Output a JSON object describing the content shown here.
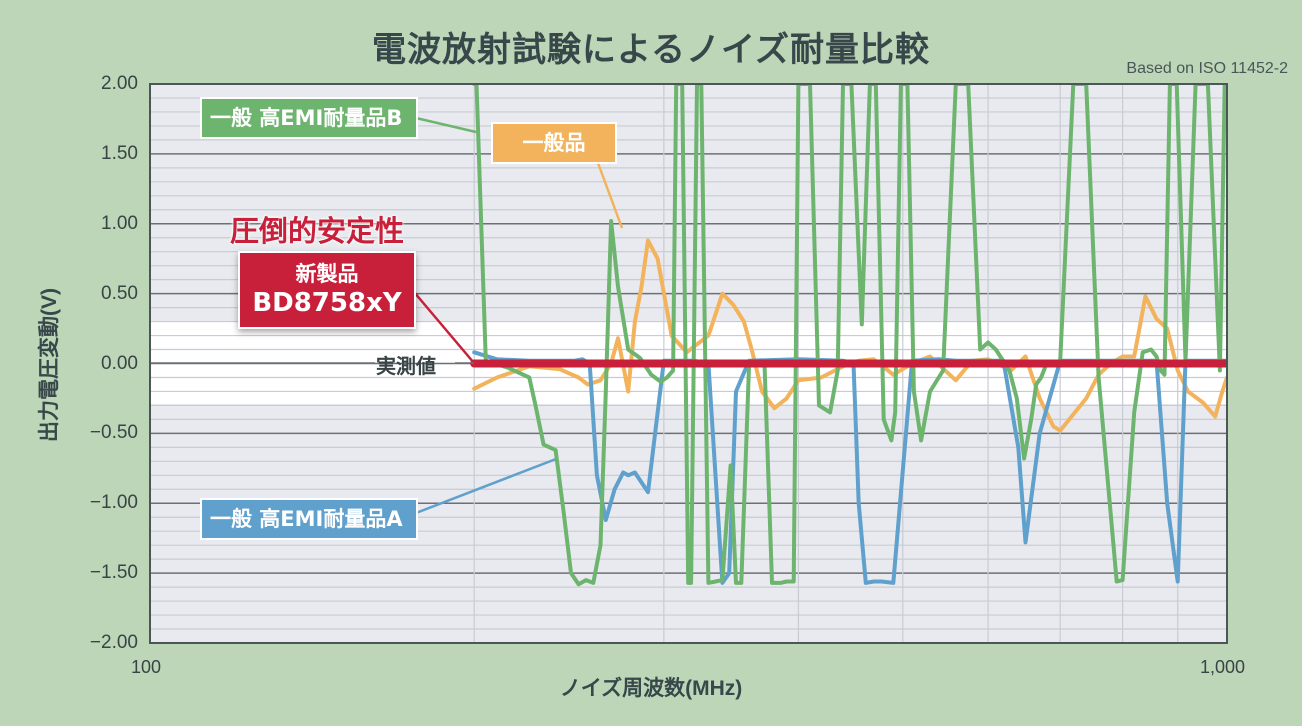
{
  "header": {
    "title": "電波放射試験によるノイズ耐量比較",
    "subtitle": "Based on ISO 11452-2"
  },
  "annotations": {
    "headline": "圧倒的安定性",
    "new_product_line1": "新製品",
    "new_product_line2": "BD8758xY",
    "measured_value": "実測値",
    "label_b": "一般 高EMI耐量品B",
    "label_general": "一般品",
    "label_a": "一般 高EMI耐量品A"
  },
  "colors": {
    "background": "#bdd6b8",
    "plot_background": "#e8eaef",
    "highlight_band": "#ffffff",
    "new_product": "#c8203a",
    "emi_b": "#6db46e",
    "general": "#f2b35c",
    "emi_a": "#5fa0cc",
    "major_grid": "#6b7074",
    "minor_grid": "#c8ccd2"
  },
  "chart_data": {
    "type": "line",
    "title": "電波放射試験によるノイズ耐量比較",
    "subtitle": "Based on ISO 11452-2",
    "xlabel": "ノイズ周波数(MHz)",
    "ylabel": "出力電圧変動(V)",
    "xscale": "log",
    "xlim": [
      100,
      1000
    ],
    "ylim": [
      -2.0,
      2.0
    ],
    "x_ticks": [
      "100",
      "1,000"
    ],
    "y_ticks": [
      "2.00",
      "1.50",
      "1.00",
      "0.50",
      "0.00",
      "−0.50",
      "−1.00",
      "−1.50",
      "−2.00"
    ],
    "grid": true,
    "legend_position": "inline callouts",
    "series": [
      {
        "name": "一般 高EMI耐量品B",
        "color": "#6db46e",
        "x": [
          200,
          201,
          205,
          215,
          225,
          228,
          232,
          238,
          242,
          246,
          250,
          254,
          258,
          262,
          265,
          268,
          272,
          278,
          285,
          292,
          298,
          302,
          306,
          308,
          312,
          316,
          318,
          322,
          325,
          330,
          335,
          340,
          346,
          350,
          354,
          360,
          372,
          378,
          385,
          390,
          396,
          400,
          410,
          418,
          428,
          435,
          440,
          448,
          458,
          466,
          472,
          480,
          488,
          492,
          498,
          505,
          512,
          520,
          530,
          545,
          560,
          575,
          590,
          600,
          610,
          628,
          638,
          648,
          658,
          665,
          672,
          680,
          700,
          720,
          740,
          760,
          790,
          800,
          820,
          835,
          850,
          860,
          868,
          875,
          885,
          898,
          915,
          935,
          960,
          985,
          995,
          1000
        ],
        "y": [
          2.0,
          2.0,
          0.02,
          -0.03,
          -0.1,
          -0.3,
          -0.58,
          -0.62,
          -1.05,
          -1.5,
          -1.58,
          -1.55,
          -1.57,
          -1.3,
          -0.2,
          1.02,
          0.55,
          0.1,
          0.04,
          -0.08,
          -0.13,
          -0.1,
          -0.05,
          2.0,
          2.0,
          -1.57,
          -1.57,
          2.0,
          2.0,
          -1.57,
          -1.56,
          -1.55,
          -0.73,
          -1.57,
          -1.57,
          0.0,
          0.0,
          -1.57,
          -1.57,
          -1.56,
          -1.56,
          2.0,
          2.0,
          -0.3,
          -0.35,
          -0.05,
          2.0,
          2.0,
          0.28,
          2.0,
          2.0,
          -0.4,
          -0.55,
          -0.35,
          2.0,
          2.0,
          -0.2,
          -0.55,
          -0.2,
          -0.05,
          2.0,
          2.0,
          0.1,
          0.15,
          0.1,
          -0.05,
          -0.25,
          -0.68,
          -0.4,
          -0.15,
          -0.1,
          0.0,
          0.02,
          2.0,
          2.0,
          -0.1,
          -1.56,
          -1.55,
          -0.35,
          0.08,
          0.1,
          0.05,
          -0.05,
          -0.08,
          2.0,
          2.0,
          0.02,
          2.0,
          2.0,
          -0.05,
          2.0,
          2.0
        ]
      },
      {
        "name": "一般 高EMI耐量品A",
        "color": "#5fa0cc",
        "x": [
          200,
          210,
          225,
          240,
          248,
          252,
          256,
          260,
          265,
          270,
          275,
          278,
          282,
          290,
          300,
          320,
          330,
          335,
          340,
          345,
          350,
          360,
          400,
          440,
          450,
          455,
          462,
          470,
          478,
          490,
          510,
          540,
          560,
          590,
          620,
          640,
          650,
          670,
          700,
          800,
          860,
          880,
          900,
          915,
          930,
          1000
        ],
        "y": [
          0.08,
          0.03,
          0.02,
          0.02,
          0.02,
          0.03,
          0.0,
          -0.8,
          -1.12,
          -0.9,
          -0.78,
          -0.8,
          -0.78,
          -0.92,
          0.02,
          0.02,
          0.0,
          -0.8,
          -1.57,
          -1.5,
          -0.2,
          0.02,
          0.03,
          0.02,
          0.0,
          -1.0,
          -1.57,
          -1.56,
          -1.56,
          -1.57,
          0.02,
          0.03,
          0.02,
          0.02,
          0.02,
          -0.6,
          -1.28,
          -0.5,
          0.02,
          0.02,
          0.02,
          -1.0,
          -1.56,
          0.02,
          0.02,
          0.02
        ]
      },
      {
        "name": "一般品",
        "color": "#f2b35c",
        "x": [
          200,
          210,
          225,
          240,
          250,
          255,
          262,
          268,
          272,
          278,
          282,
          286,
          290,
          296,
          305,
          315,
          330,
          340,
          348,
          356,
          362,
          370,
          380,
          390,
          400,
          420,
          440,
          455,
          470,
          490,
          510,
          530,
          560,
          580,
          600,
          630,
          650,
          670,
          690,
          700,
          740,
          760,
          780,
          800,
          820,
          840,
          860,
          880,
          900,
          920,
          950,
          975,
          990,
          1000
        ],
        "y": [
          -0.18,
          -0.1,
          -0.02,
          -0.04,
          -0.1,
          -0.15,
          -0.12,
          0.0,
          0.18,
          -0.2,
          0.3,
          0.55,
          0.88,
          0.75,
          0.2,
          0.08,
          0.2,
          0.5,
          0.42,
          0.3,
          0.1,
          -0.2,
          -0.32,
          -0.25,
          -0.12,
          -0.1,
          -0.02,
          0.02,
          0.03,
          -0.08,
          0.0,
          0.05,
          -0.12,
          0.02,
          0.03,
          -0.05,
          0.05,
          -0.25,
          -0.45,
          -0.48,
          -0.25,
          -0.08,
          0.0,
          0.05,
          0.05,
          0.48,
          0.32,
          0.25,
          -0.05,
          -0.2,
          -0.28,
          -0.38,
          -0.2,
          -0.1
        ]
      },
      {
        "name": "新製品 BD8758xY",
        "color": "#c8203a",
        "x": [
          200,
          1000
        ],
        "y": [
          0.0,
          0.0
        ]
      }
    ]
  }
}
